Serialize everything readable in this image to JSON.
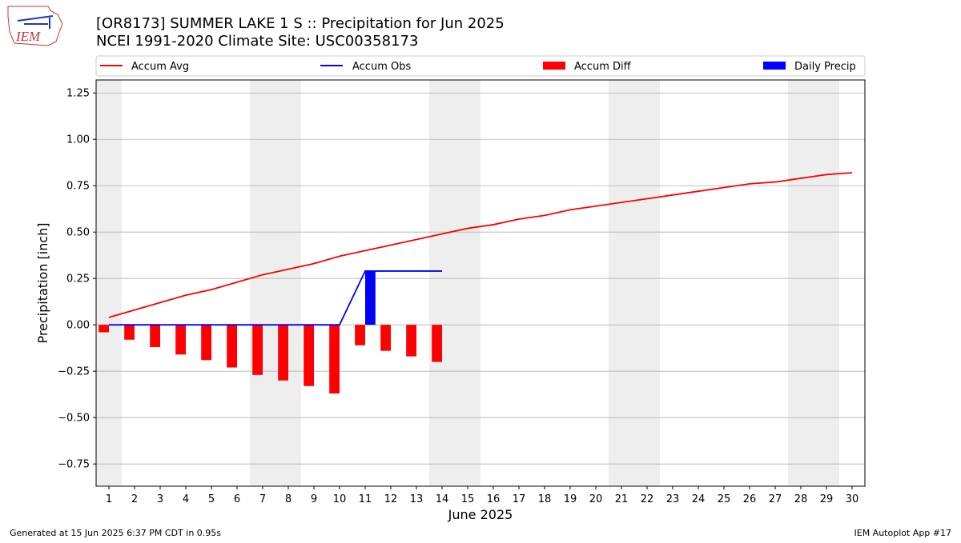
{
  "logo_text": "IEM",
  "footer_left": "Generated at 15 Jun 2025 6:37 PM CDT in 0.95s",
  "footer_right": "IEM Autoplot App #17",
  "chart_data": {
    "type": "combo",
    "title": "[OR8173] SUMMER LAKE 1 S :: Precipitation for Jun 2025",
    "subtitle": "NCEI 1991-2020 Climate Site: USC00358173",
    "xlabel": "June 2025",
    "ylabel": "Precipitation [inch]",
    "x": [
      1,
      2,
      3,
      4,
      5,
      6,
      7,
      8,
      9,
      10,
      11,
      12,
      13,
      14,
      15,
      16,
      17,
      18,
      19,
      20,
      21,
      22,
      23,
      24,
      25,
      26,
      27,
      28,
      29,
      30
    ],
    "xlim": [
      0.5,
      30.5
    ],
    "xticks": [
      1,
      2,
      3,
      4,
      5,
      6,
      7,
      8,
      9,
      10,
      11,
      12,
      13,
      14,
      15,
      16,
      17,
      18,
      19,
      20,
      21,
      22,
      23,
      24,
      25,
      26,
      27,
      28,
      29,
      30
    ],
    "ylim": [
      -0.87,
      1.32
    ],
    "yticks": [
      {
        "value": -0.75,
        "label": "−0.75"
      },
      {
        "value": -0.5,
        "label": "−0.50"
      },
      {
        "value": -0.25,
        "label": "−0.25"
      },
      {
        "value": 0,
        "label": "0.00"
      },
      {
        "value": 0.25,
        "label": "0.25"
      },
      {
        "value": 0.5,
        "label": "0.50"
      },
      {
        "value": 0.75,
        "label": "0.75"
      },
      {
        "value": 1.0,
        "label": "1.00"
      },
      {
        "value": 1.25,
        "label": "1.25"
      }
    ],
    "grid": true,
    "weekend_shading": true,
    "series": [
      {
        "name": "Accum Avg",
        "type": "line",
        "color": "#ff0000",
        "values": [
          0.04,
          0.08,
          0.12,
          0.16,
          0.19,
          0.23,
          0.27,
          0.3,
          0.33,
          0.37,
          0.4,
          0.43,
          0.46,
          0.49,
          0.52,
          0.54,
          0.57,
          0.59,
          0.62,
          0.64,
          0.66,
          0.68,
          0.7,
          0.72,
          0.74,
          0.76,
          0.77,
          0.79,
          0.81,
          0.82
        ]
      },
      {
        "name": "Accum Obs",
        "type": "line",
        "color": "#0000ff",
        "values": [
          0,
          0,
          0,
          0,
          0,
          0,
          0,
          0,
          0,
          0,
          0.29,
          0.29,
          0.29,
          0.29,
          null,
          null,
          null,
          null,
          null,
          null,
          null,
          null,
          null,
          null,
          null,
          null,
          null,
          null,
          null,
          null
        ]
      },
      {
        "name": "Accum Diff",
        "type": "bar",
        "align": "left",
        "color": "#ff0000",
        "values": [
          -0.04,
          -0.08,
          -0.12,
          -0.16,
          -0.19,
          -0.23,
          -0.27,
          -0.3,
          -0.33,
          -0.37,
          -0.11,
          -0.14,
          -0.17,
          -0.2,
          null,
          null,
          null,
          null,
          null,
          null,
          null,
          null,
          null,
          null,
          null,
          null,
          null,
          null,
          null,
          null
        ]
      },
      {
        "name": "Daily Precip",
        "type": "bar",
        "align": "right",
        "color": "#0000ff",
        "values": [
          0,
          0,
          0,
          0,
          0,
          0,
          0,
          0,
          0,
          0,
          0.29,
          0,
          0,
          0,
          null,
          null,
          null,
          null,
          null,
          null,
          null,
          null,
          null,
          null,
          null,
          null,
          null,
          null,
          null,
          null
        ]
      }
    ]
  }
}
